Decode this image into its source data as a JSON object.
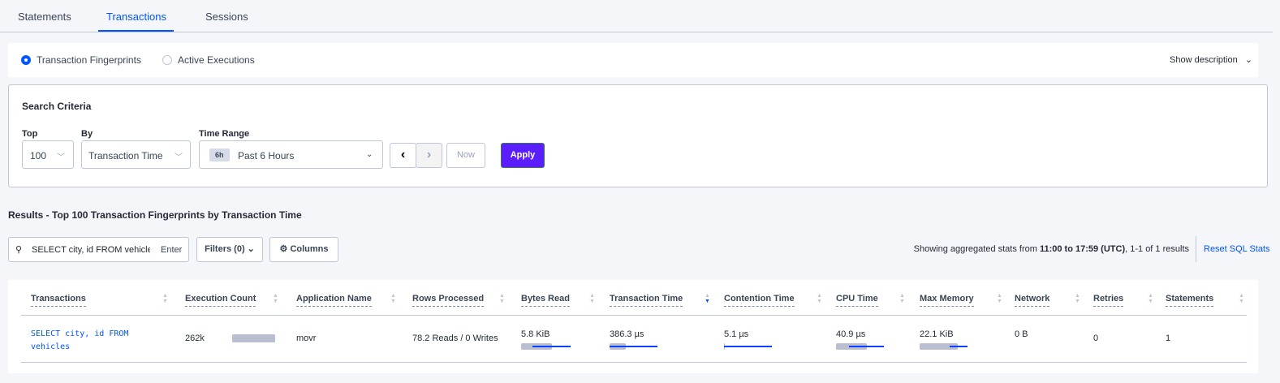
{
  "tabs": [
    {
      "label": "Statements"
    },
    {
      "label": "Transactions",
      "active": true
    },
    {
      "label": "Sessions"
    }
  ],
  "view": {
    "options": [
      {
        "label": "Transaction Fingerprints",
        "selected": true
      },
      {
        "label": "Active Executions",
        "selected": false
      }
    ],
    "show_description": "Show description"
  },
  "search": {
    "title": "Search Criteria",
    "top_label": "Top",
    "top_value": "100",
    "by_label": "By",
    "by_value": "Transaction Time",
    "range_label": "Time Range",
    "range_badge": "6h",
    "range_value": "Past 6 Hours",
    "now": "Now",
    "apply": "Apply"
  },
  "results": {
    "title": "Results - Top 100 Transaction Fingerprints by Transaction Time",
    "search_value": "SELECT city, id FROM vehicles W",
    "enter": "Enter",
    "filters": "Filters (0)",
    "columns": "Columns",
    "summary_prefix": "Showing aggregated stats from ",
    "summary_range": "11:00 to 17:59 (UTC)",
    "summary_suffix": ", 1-1 of 1 results",
    "reset": "Reset SQL Stats"
  },
  "table": {
    "headers": [
      "Transactions",
      "Execution Count",
      "Application Name",
      "Rows Processed",
      "Bytes Read",
      "Transaction Time",
      "Contention Time",
      "CPU Time",
      "Max Memory",
      "Network",
      "Retries",
      "Statements"
    ],
    "sorted_column": "Transaction Time",
    "sort_direction": "descending",
    "rows": [
      {
        "transaction": "SELECT city, id FROM vehicles",
        "execution_count": "262k",
        "app": "movr",
        "rows": "78.2 Reads / 0 Writes",
        "bytes_read": "5.8 KiB",
        "tx_time": "386.3 µs",
        "contention": "5.1 µs",
        "cpu": "40.9 µs",
        "max_memory": "22.1 KiB",
        "network": "0 B",
        "retries": "0",
        "statements": "1"
      }
    ]
  },
  "colors": {
    "accent": "#0055ff",
    "apply": "#5b1fff",
    "bar": "#b9bfd1"
  }
}
